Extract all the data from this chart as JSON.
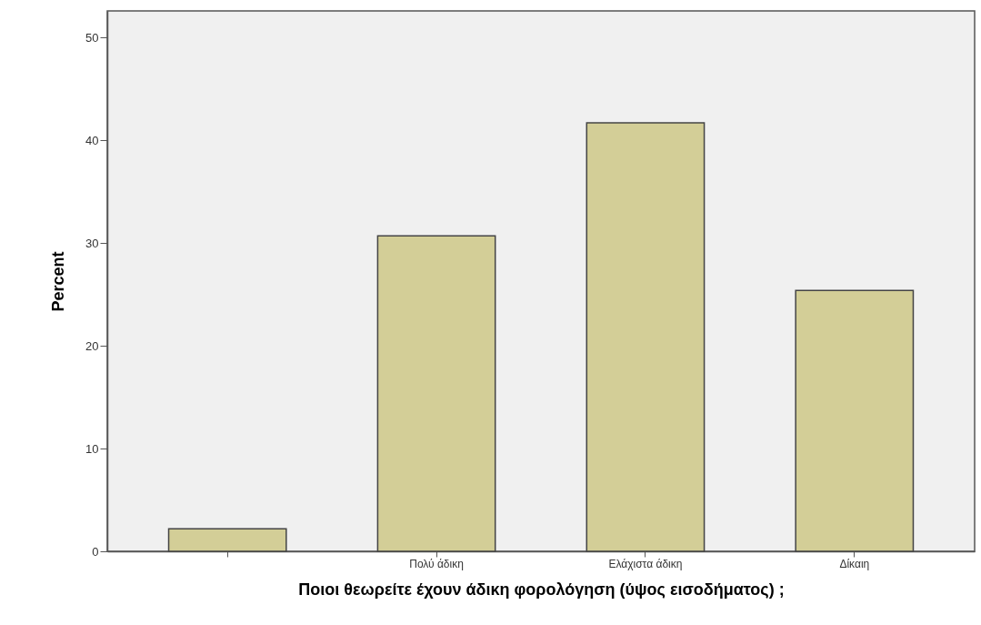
{
  "chart_data": {
    "type": "bar",
    "xlabel": "Ποιοι θεωρείτε έχουν άδικη φορολόγηση (ύψος εισοδήματος) ;",
    "ylabel": "Percent",
    "categories": [
      null,
      "Πολύ άδικη",
      "Ελάχιστα άδικη",
      "Δίκαιη"
    ],
    "values": [
      2.2,
      30.7,
      41.7,
      25.4
    ],
    "color": "#d3ce97",
    "ylim": [
      0,
      52.6
    ],
    "yticks": [
      0,
      10,
      20,
      30,
      40,
      50
    ],
    "grid": false
  }
}
